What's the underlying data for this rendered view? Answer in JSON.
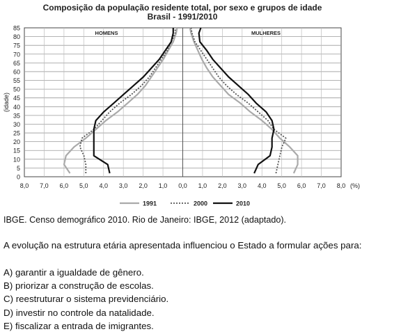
{
  "chart_data": {
    "type": "line",
    "title": "Composição da população residente total, por sexo e grupos de idade",
    "subtitle": "Brasil - 1991/2010",
    "ylabel": "(idade)",
    "xunit": "(%)",
    "panels": [
      "HOMENS",
      "MULHERES"
    ],
    "y_ticks": [
      "0",
      "5",
      "10",
      "15",
      "20",
      "25",
      "30",
      "35",
      "40",
      "45",
      "50",
      "55",
      "60",
      "65",
      "70",
      "75",
      "80",
      "85"
    ],
    "x_ticks": [
      "8,0",
      "7,0",
      "6,0",
      "5,0",
      "4,0",
      "3,0",
      "2,0",
      "1,0",
      "0,0",
      "1,0",
      "2,0",
      "3,0",
      "4,0",
      "5,0",
      "6,0",
      "7,0",
      "8,0"
    ],
    "xlim": [
      0,
      8
    ],
    "ylim": [
      0,
      85
    ],
    "grid": true,
    "legend_position": "bottom-center",
    "ages": [
      2,
      7,
      12,
      17,
      22,
      27,
      32,
      37,
      42,
      47,
      52,
      57,
      62,
      67,
      72,
      77,
      82,
      85
    ],
    "series": [
      {
        "name": "1991",
        "color": "#aaaaaa",
        "style": "solid",
        "men": [
          5.7,
          6.0,
          5.9,
          5.5,
          4.9,
          4.4,
          3.9,
          3.3,
          2.8,
          2.3,
          1.9,
          1.6,
          1.3,
          1.0,
          0.75,
          0.5,
          0.35,
          0.3
        ],
        "women": [
          5.6,
          5.8,
          5.8,
          5.4,
          4.9,
          4.5,
          4.0,
          3.4,
          2.9,
          2.3,
          1.9,
          1.5,
          1.2,
          0.95,
          0.75,
          0.55,
          0.4,
          0.35
        ]
      },
      {
        "name": "2000",
        "color": "#555555",
        "style": "dotted",
        "men": [
          4.9,
          4.9,
          5.0,
          5.2,
          5.1,
          4.5,
          4.1,
          3.7,
          3.2,
          2.6,
          2.1,
          1.7,
          1.4,
          1.1,
          0.8,
          0.6,
          0.4,
          0.4
        ],
        "women": [
          4.7,
          4.8,
          4.9,
          5.0,
          5.2,
          4.6,
          4.3,
          3.8,
          3.3,
          2.7,
          2.2,
          1.8,
          1.5,
          1.2,
          0.9,
          0.6,
          0.45,
          0.4
        ]
      },
      {
        "name": "2010",
        "color": "#111111",
        "style": "solid",
        "men": [
          3.7,
          3.8,
          4.5,
          4.5,
          4.5,
          4.5,
          4.4,
          4.0,
          3.5,
          3.0,
          2.5,
          2.0,
          1.6,
          1.2,
          0.9,
          0.6,
          0.5,
          0.5
        ],
        "women": [
          3.6,
          3.8,
          4.4,
          4.5,
          4.5,
          4.6,
          4.5,
          4.2,
          3.7,
          3.3,
          2.8,
          2.3,
          1.9,
          1.5,
          1.2,
          0.85,
          0.8,
          0.9
        ]
      }
    ]
  },
  "source": "IBGE. Censo demográfico 2010. Rio de Janeiro: IBGE, 2012 (adaptado).",
  "question": "A evolução na estrutura etária apresentada influenciou o Estado a formular ações para:",
  "options": [
    "A) garantir a igualdade de gênero.",
    "B) priorizar a construção de escolas.",
    "C) reestruturar o sistema previdenciário.",
    "D) investir no controle da natalidade.",
    "E) fiscalizar a entrada de imigrantes."
  ]
}
